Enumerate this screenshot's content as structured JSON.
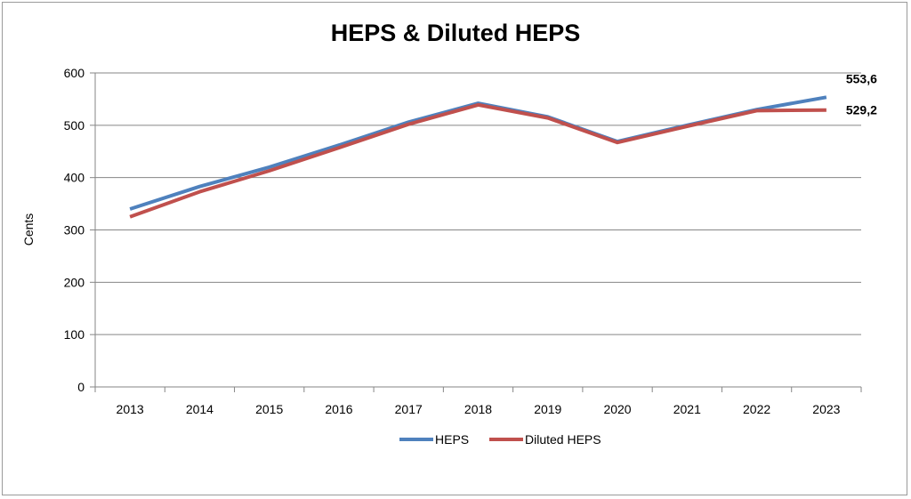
{
  "chart_data": {
    "type": "line",
    "title": "HEPS & Diluted HEPS",
    "xlabel": "",
    "ylabel": "Cents",
    "ylim": [
      0,
      600
    ],
    "yticks": [
      "0",
      "100",
      "200",
      "300",
      "400",
      "500",
      "600"
    ],
    "categories": [
      "2013",
      "2014",
      "2015",
      "2016",
      "2017",
      "2018",
      "2019",
      "2020",
      "2021",
      "2022",
      "2023"
    ],
    "grid": "horizontal",
    "legend_position": "bottom",
    "series": [
      {
        "name": "HEPS",
        "color": "#4f81bd",
        "values": [
          340,
          383,
          420,
          462,
          506,
          542,
          516,
          469,
          500,
          530,
          553.6
        ],
        "end_label": "553,6"
      },
      {
        "name": "Diluted HEPS",
        "color": "#c0504d",
        "values": [
          325,
          373,
          413,
          457,
          502,
          539,
          514,
          467,
          498,
          528,
          529.2
        ],
        "end_label": "529,2"
      }
    ]
  }
}
